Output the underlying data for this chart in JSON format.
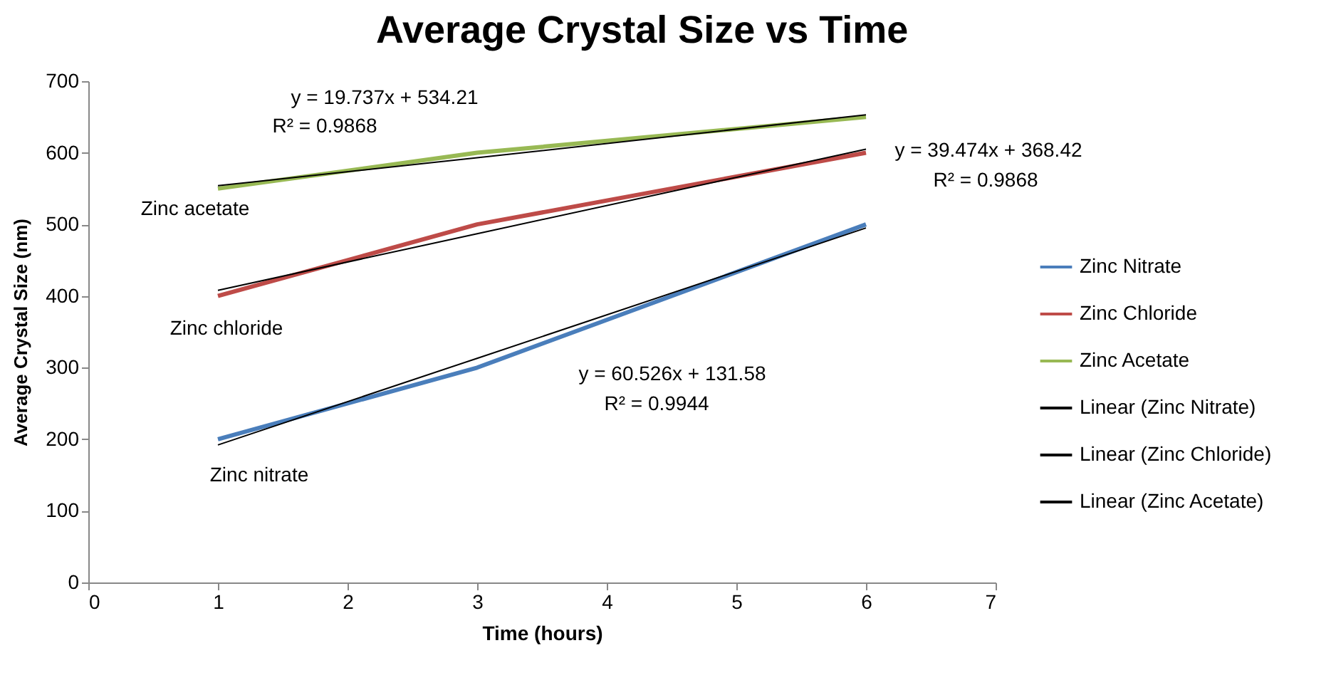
{
  "chart_data": {
    "type": "line",
    "title": "Average Crystal Size vs Time",
    "xlabel": "Time (hours)",
    "ylabel": "Average Crystal Size (nm)",
    "x": [
      1,
      3,
      6
    ],
    "series": [
      {
        "name": "Zinc Nitrate",
        "color": "#4a7ebb",
        "values": [
          200,
          300,
          500
        ]
      },
      {
        "name": "Zinc Chloride",
        "color": "#be4b48",
        "values": [
          400,
          500,
          600
        ]
      },
      {
        "name": "Zinc Acetate",
        "color": "#98b954",
        "values": [
          550,
          600,
          650
        ]
      },
      {
        "name": "Linear (Zinc Nitrate)",
        "color": "#000000",
        "type": "line",
        "values": [
          192,
          313,
          495
        ]
      },
      {
        "name": "Linear (Zinc Chloride)",
        "color": "#000000",
        "type": "line",
        "values": [
          408,
          487,
          605
        ]
      },
      {
        "name": "Linear (Zinc Acetate)",
        "color": "#000000",
        "type": "line",
        "values": [
          554,
          593,
          653
        ]
      }
    ],
    "xlim": [
      0,
      7
    ],
    "xticks": [
      0,
      1,
      2,
      3,
      4,
      5,
      6,
      7
    ],
    "ylim": [
      0,
      700
    ],
    "yticks": [
      0,
      100,
      200,
      300,
      400,
      500,
      600,
      700
    ],
    "grid": false,
    "legend": "right",
    "marker": "none",
    "line_style": "solid",
    "annotations": [
      "y = 19.737x + 534.21",
      "R² = 0.9868",
      "y = 39.474x + 368.42",
      "R² = 0.9868",
      "y = 60.526x + 131.58",
      "R² = 0.9944",
      "Zinc  acetate",
      "Zinc  chloride",
      "Zinc  nitrate"
    ]
  }
}
